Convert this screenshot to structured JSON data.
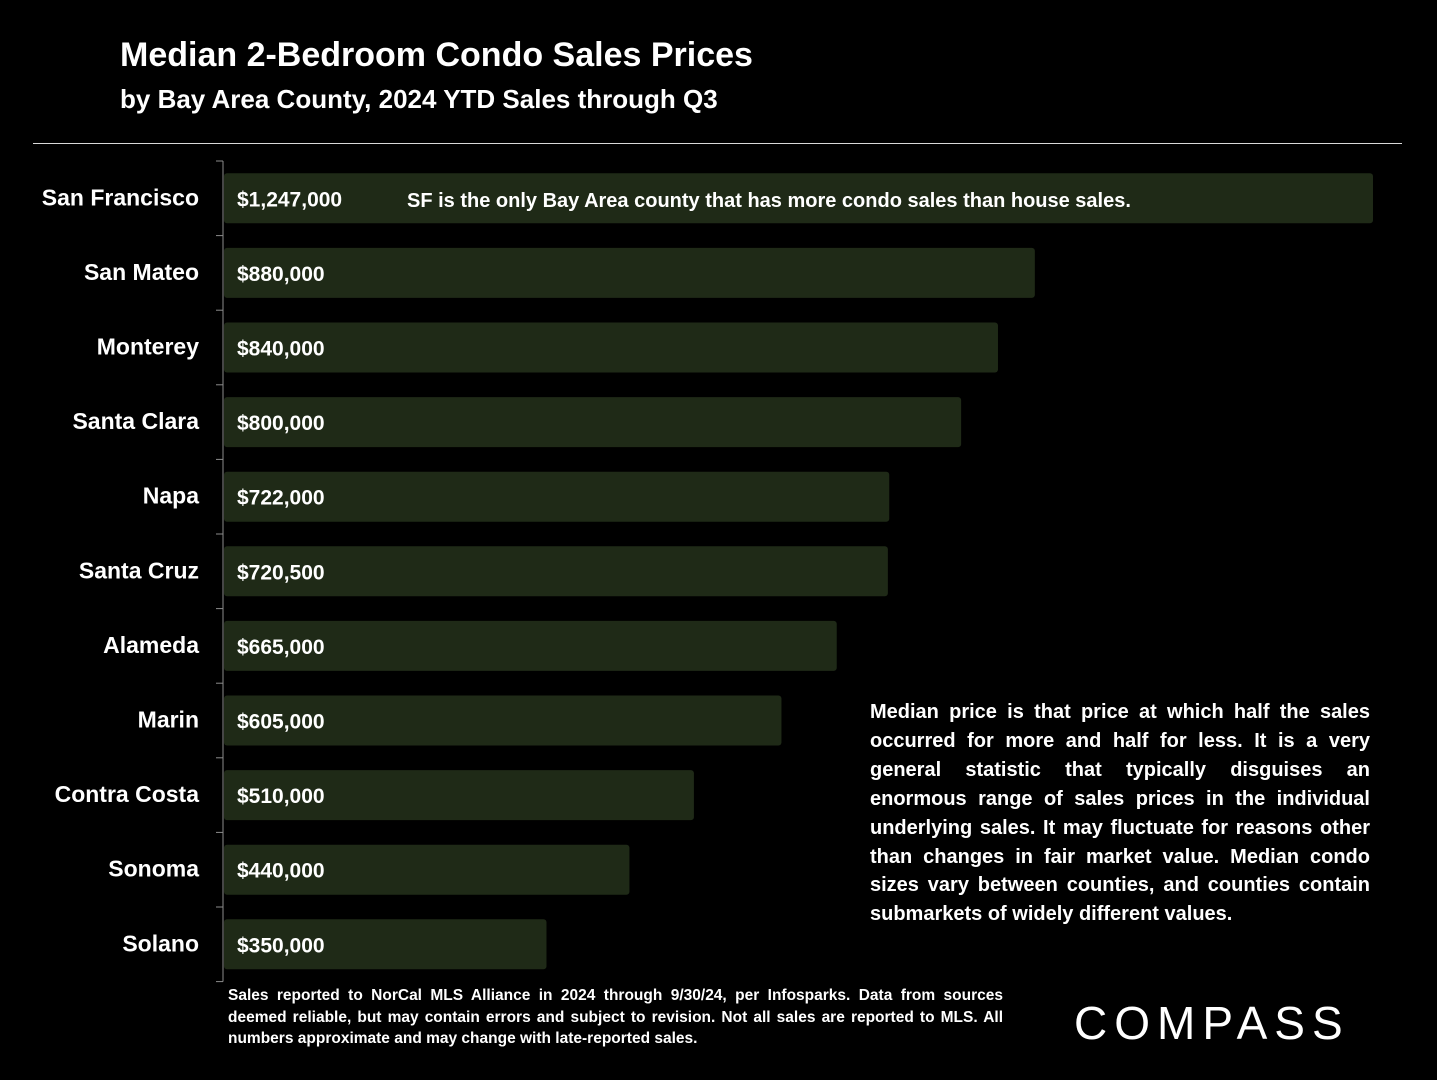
{
  "header": {
    "title": "Median 2-Bedroom Condo Sales Prices",
    "subtitle": "by Bay Area County, 2024 YTD Sales through Q3"
  },
  "annotations": {
    "sf_note": "SF is the only Bay Area county that has more condo sales than house sales.",
    "median_note": "Median price is that price at which half the sales occurred for more and half for less. It is a very general statistic that typically disguises an enormous range of sales prices in the individual underlying sales. It may fluctuate for reasons other than changes in fair market value. Median condo sizes vary between counties, and counties contain submarkets of widely different values."
  },
  "footnote": "Sales reported to NorCal MLS Alliance in 2024 through 9/30/24, per Infosparks. Data from sources deemed reliable, but may contain errors and subject to revision. Not all sales are reported to MLS. All numbers approximate and may change with late-reported sales.",
  "logo": {
    "text": "COMPASS",
    "icon": "compass-wordmark-logo"
  },
  "colors": {
    "background": "#000000",
    "bar": "#1f2a17",
    "text": "#ffffff",
    "axis": "#8c8c8c"
  },
  "chart_data": {
    "type": "bar",
    "orientation": "horizontal",
    "title": "Median 2-Bedroom Condo Sales Prices",
    "subtitle": "by Bay Area County, 2024 YTD Sales through Q3",
    "categories": [
      "San Francisco",
      "San Mateo",
      "Monterey",
      "Santa Clara",
      "Napa",
      "Santa Cruz",
      "Alameda",
      "Marin",
      "Contra Costa",
      "Sonoma",
      "Solano"
    ],
    "values": [
      1247000,
      880000,
      840000,
      800000,
      722000,
      720500,
      665000,
      605000,
      510000,
      440000,
      350000
    ],
    "data_labels": [
      "$1,247,000",
      "$880,000",
      "$840,000",
      "$800,000",
      "$722,000",
      "$720,500",
      "$665,000",
      "$605,000",
      "$510,000",
      "$440,000",
      "$350,000"
    ],
    "xlim": [
      0,
      1247000
    ],
    "grid": false,
    "legend": "none"
  }
}
